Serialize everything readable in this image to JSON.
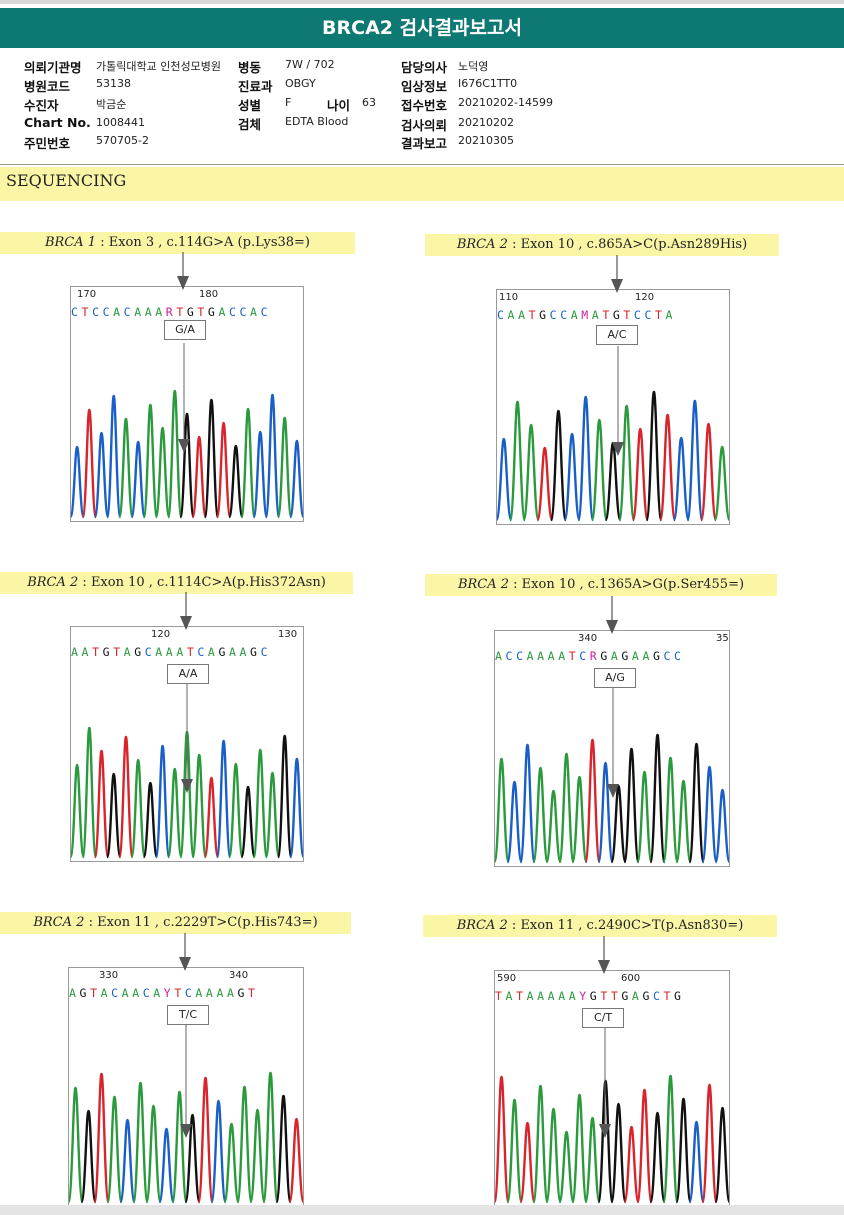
{
  "header": {
    "title": "BRCA2 검사결과보고서"
  },
  "info": {
    "institution_label": "의뢰기관명",
    "institution": "가톨릭대학교 인천성모병원",
    "ward_label": "병동",
    "ward": "7W / 702",
    "doctor_label": "담당의사",
    "doctor": "노덕영",
    "hospital_code_label": "병원코드",
    "hospital_code": "53138",
    "department_label": "진료과",
    "department": "OBGY",
    "clinical_label": "임상정보",
    "clinical": "I676C1TT0",
    "patient_label": "수진자",
    "patient": "박금순",
    "sex_label": "성별",
    "sex": "F",
    "age_label": "나이",
    "age": "63",
    "receipt_label": "접수번호",
    "receipt": "20210202-14599",
    "chart_label": "Chart No.",
    "chart": "1008441",
    "specimen_label": "검체",
    "specimen": "EDTA Blood",
    "request_label": "검사의뢰",
    "request": "20210202",
    "id_label": "주민번호",
    "id": "570705-2",
    "report_label": "결과보고",
    "report": "20210305"
  },
  "section": {
    "title": "SEQUENCING"
  },
  "colors": {
    "A": "#2a9a3c",
    "C": "#1a5fc8",
    "G": "#111111",
    "T": "#d8242a",
    "mixed": "#d020a0",
    "header": "#0e7872",
    "highlight": "#fbf6a6"
  },
  "variants": [
    {
      "gene": "BRCA 1",
      "detail": " : Exon 3 , c.114G>A (p.Lys38=)",
      "sequence": "CTCCACAAARTGTGACCAC",
      "num1": "170",
      "num2": "180",
      "call": "G/A"
    },
    {
      "gene": "BRCA 2",
      "detail": " : Exon 10 , c.865A>C(p.Asn289His)",
      "sequence": "CAATGCCAMATGTCCTA",
      "num1": "110",
      "num2": "120",
      "call": "A/C"
    },
    {
      "gene": "BRCA 2",
      "detail": " : Exon 10 , c.1114C>A(p.His372Asn)",
      "sequence": "AATGTAGCAAATCAGAAGC",
      "num1": "120",
      "num2": "130",
      "call": "A/A"
    },
    {
      "gene": "BRCA 2",
      "detail": " : Exon 10 , c.1365A>G(p.Ser455=)",
      "sequence": "ACCAAAATCRGAGAAGCC",
      "num1": "340",
      "num2": "35",
      "call": "A/G"
    },
    {
      "gene": "BRCA 2",
      "detail": " : Exon 11 , c.2229T>C(p.His743=)",
      "sequence": "AGTACAACAYTCAAAAGT",
      "num1": "330",
      "num2": "340",
      "call": "T/C"
    },
    {
      "gene": "BRCA 2",
      "detail": " : Exon 11 , c.2490C>T(p.Asn830=)",
      "sequence": "TATAAAAAYGTTGAGCTG",
      "num1": "590",
      "num2": "600",
      "call": "C/T"
    }
  ]
}
